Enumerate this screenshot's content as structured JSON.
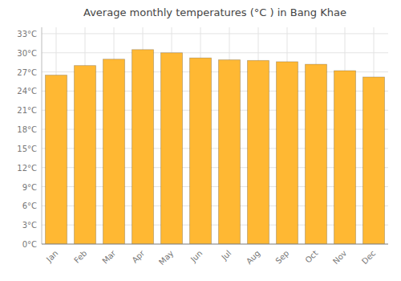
{
  "chart_data": {
    "type": "bar",
    "title": "Average monthly temperatures (°C ) in Bang Khae",
    "categories": [
      "Jan",
      "Feb",
      "Mar",
      "Apr",
      "May",
      "Jun",
      "Jul",
      "Aug",
      "Sep",
      "Oct",
      "Nov",
      "Dec"
    ],
    "values": [
      26.5,
      28.0,
      29.0,
      30.5,
      30.0,
      29.2,
      28.9,
      28.8,
      28.6,
      28.2,
      27.2,
      26.2
    ],
    "color": "#FFB833",
    "ylim": [
      0,
      34
    ],
    "yticks": [
      {
        "value": 0,
        "label": "0°C"
      },
      {
        "value": 3,
        "label": "3°C"
      },
      {
        "value": 6,
        "label": "6°C"
      },
      {
        "value": 9,
        "label": "9°C"
      },
      {
        "value": 12,
        "label": "12°C"
      },
      {
        "value": 15,
        "label": "15°C"
      },
      {
        "value": 18,
        "label": "18°C"
      },
      {
        "value": 21,
        "label": "21°C"
      },
      {
        "value": 24,
        "label": "24°C"
      },
      {
        "value": 27,
        "label": "27°C"
      },
      {
        "value": 30,
        "label": "30°C"
      },
      {
        "value": 33,
        "label": "33°C"
      }
    ],
    "grid": true
  }
}
